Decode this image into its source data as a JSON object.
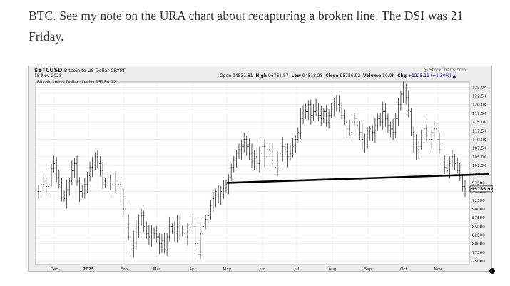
{
  "article": {
    "text": "BTC. See my note on the URA chart about recapturing a broken line. The DSI was 21 Friday."
  },
  "chart_header": {
    "symbol": "$BTCUSD",
    "symbol_desc": "Bitcoin to US Dollar CRYPT",
    "date": "15-Nov-2025",
    "open_label": "Open",
    "open": "94531.81",
    "high_label": "High",
    "high": "96761.57",
    "low_label": "Low",
    "low": "94518.28",
    "close_label": "Close",
    "close": "95756.92",
    "volume_label": "Volume",
    "volume": "10.0K",
    "chg_label": "Chg",
    "chg": "+1225.11 (+1.30%)",
    "chg_arrow": "▲",
    "watermark": "@ StockCharts.com",
    "legend": "Bitcoin to US Dollar (Daily) 95756.92"
  },
  "chart_data": {
    "type": "ohlc",
    "price_label": "95756.92",
    "x_ticks": [
      "Dec",
      "2025",
      "Feb",
      "Mar",
      "Apr",
      "May",
      "Jun",
      "Jul",
      "Aug",
      "Sep",
      "Oct",
      "Nov"
    ],
    "y_ticks": [
      "125.0K",
      "122.5K",
      "120.0K",
      "117.5K",
      "115.0K",
      "112.5K",
      "110.0K",
      "107.5K",
      "105.0K",
      "102.5K",
      "100.0K",
      "97500",
      "95000",
      "92500",
      "90000",
      "87500",
      "85000",
      "82500",
      "80000",
      "77500",
      "75000"
    ],
    "y_values": [
      125000,
      122500,
      120000,
      117500,
      115000,
      112500,
      110000,
      107500,
      105000,
      102500,
      100000,
      97500,
      95000,
      92500,
      90000,
      87500,
      85000,
      82500,
      80000,
      77500,
      75000
    ],
    "ylim": [
      74000,
      126500
    ],
    "trendline": [
      {
        "date": "May 1",
        "value": 97500
      },
      {
        "date": "Nov 15",
        "value": 100000
      }
    ],
    "closes": [
      95000,
      97000,
      98000,
      96500,
      99000,
      101500,
      103000,
      99000,
      97000,
      94000,
      93000,
      95500,
      98000,
      101000,
      103000,
      98000,
      95000,
      94500,
      97000,
      99500,
      102000,
      104000,
      105000,
      103000,
      101000,
      98000,
      97500,
      99000,
      97000,
      96000,
      98000,
      97000,
      94000,
      90000,
      86000,
      82000,
      79000,
      81000,
      84000,
      86000,
      88000,
      85000,
      83000,
      82000,
      84000,
      83000,
      82000,
      80000,
      81000,
      79000,
      82000,
      85000,
      84000,
      83000,
      86000,
      84000,
      83000,
      82000,
      84000,
      86000,
      85000,
      80000,
      77000,
      83000,
      85000,
      87000,
      88000,
      91000,
      93000,
      95000,
      94000,
      95000,
      96000,
      97000,
      99000,
      102000,
      104000,
      106000,
      107000,
      108000,
      110000,
      108000,
      106000,
      104000,
      105000,
      103000,
      106000,
      108000,
      105000,
      107000,
      106000,
      104000,
      102000,
      104000,
      106000,
      108000,
      107000,
      105000,
      106000,
      108000,
      110000,
      112000,
      116000,
      119000,
      118000,
      120000,
      117000,
      118000,
      119000,
      117000,
      116000,
      118000,
      115000,
      117000,
      119000,
      121000,
      120000,
      119000,
      117000,
      115000,
      113000,
      112000,
      115000,
      116000,
      114000,
      112000,
      110000,
      109000,
      111000,
      113000,
      112000,
      114000,
      116000,
      115000,
      118000,
      116000,
      114000,
      113000,
      112000,
      116000,
      120000,
      123000,
      124000,
      122000,
      118000,
      112000,
      109000,
      107000,
      108000,
      111000,
      113000,
      111000,
      110000,
      112000,
      113000,
      110000,
      107000,
      104000,
      102000,
      101000,
      103000,
      105000,
      103000,
      101000,
      99000,
      96500,
      95757
    ]
  }
}
